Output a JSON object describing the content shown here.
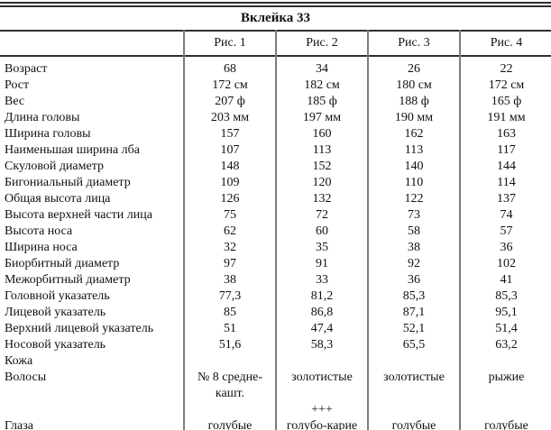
{
  "title": "Вклейка 33",
  "table": {
    "columns": [
      "",
      "Рис. 1",
      "Рис. 2",
      "Рис. 3",
      "Рис. 4"
    ],
    "rows": [
      {
        "label": "Возраст",
        "values": [
          "68",
          "34",
          "26",
          "22"
        ]
      },
      {
        "label": "Рост",
        "values": [
          "172 см",
          "182 см",
          "180 см",
          "172 см"
        ]
      },
      {
        "label": "Вес",
        "values": [
          "207 ф",
          "185 ф",
          "188 ф",
          "165 ф"
        ]
      },
      {
        "label": "Длина головы",
        "values": [
          "203 мм",
          "197 мм",
          "190 мм",
          "191 мм"
        ]
      },
      {
        "label": "Ширина головы",
        "values": [
          "157",
          "160",
          "162",
          "163"
        ]
      },
      {
        "label": "Наименьшая ширина лба",
        "values": [
          "107",
          "113",
          "113",
          "117"
        ]
      },
      {
        "label": "Скуловой диаметр",
        "values": [
          "148",
          "152",
          "140",
          "144"
        ]
      },
      {
        "label": "Бигониальный диаметр",
        "values": [
          "109",
          "120",
          "110",
          "114"
        ]
      },
      {
        "label": "Общая высота лица",
        "values": [
          "126",
          "132",
          "122",
          "137"
        ]
      },
      {
        "label": "Высота верхней части лица",
        "values": [
          "75",
          "72",
          "73",
          "74"
        ]
      },
      {
        "label": "Высота носа",
        "values": [
          "62",
          "60",
          "58",
          "57"
        ]
      },
      {
        "label": "Ширина носа",
        "values": [
          "32",
          "35",
          "38",
          "36"
        ]
      },
      {
        "label": "Биорбитный диаметр",
        "values": [
          "97",
          "91",
          "92",
          "102"
        ]
      },
      {
        "label": "Межорбитный диаметр",
        "values": [
          "38",
          "33",
          "36",
          "41"
        ]
      },
      {
        "label": "Головной указатель",
        "values": [
          "77,3",
          "81,2",
          "85,3",
          "85,3"
        ]
      },
      {
        "label": "Лицевой указатель",
        "values": [
          "85",
          "86,8",
          "87,1",
          "95,1"
        ]
      },
      {
        "label": "Верхний лицевой указатель",
        "values": [
          "51",
          "47,4",
          "52,1",
          "51,4"
        ]
      },
      {
        "label": "Носовой указатель",
        "values": [
          "51,6",
          "58,3",
          "65,5",
          "63,2"
        ]
      },
      {
        "label": "Кожа",
        "values": [
          "",
          "",
          "",
          ""
        ]
      },
      {
        "label": "Волосы",
        "values": [
          "№ 8 средне-кашт.",
          "золотистые",
          "золотистые",
          "рыжие"
        ]
      },
      {
        "label": "",
        "values": [
          "",
          "+++",
          "",
          ""
        ]
      },
      {
        "label": "Глаза",
        "values": [
          "голубые",
          "голубо-карие",
          "голубые",
          "голубые"
        ]
      }
    ]
  }
}
